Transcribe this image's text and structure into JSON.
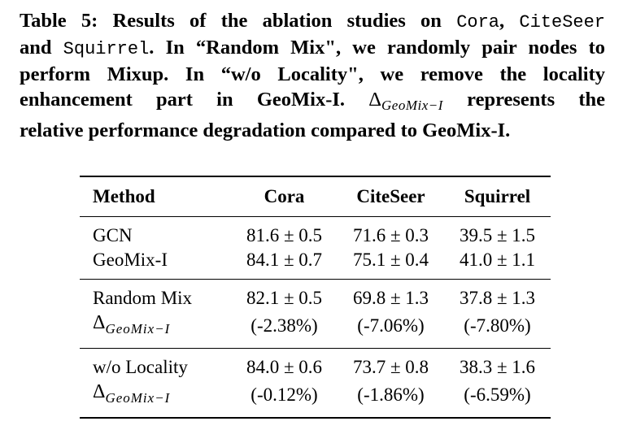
{
  "caption": {
    "line1_a": "Table 5: Results of the ablation studies on ",
    "line1_cora": "Cora",
    "line1_comma": ", ",
    "line1_citeseer": "CiteSeer",
    "line2_a": "and ",
    "line2_squirrel": "Squirrel",
    "line2_b": ". In “Random Mix\", we randomly pair nodes to",
    "line3": "perform Mixup. In “w/o Locality\", we remove the locality",
    "line4_a": "enhancement part in GeoMix-I. ",
    "line4_delta": "Δ",
    "line4_sub": "GeoMix−I",
    "line4_b": " represents the",
    "line5": "relative performance degradation compared to GeoMix-I."
  },
  "table": {
    "headers": [
      "Method",
      "Cora",
      "CiteSeer",
      "Squirrel"
    ],
    "groups": [
      {
        "rows": [
          {
            "method": "GCN",
            "values": [
              "81.6 ± 0.5",
              "71.6 ± 0.3",
              "39.5 ± 1.5"
            ]
          },
          {
            "method": "GeoMix-I",
            "values": [
              "84.1 ± 0.7",
              "75.1 ± 0.4",
              "41.0 ± 1.1"
            ]
          }
        ]
      },
      {
        "rows": [
          {
            "method": "Random Mix",
            "values": [
              "82.1 ± 0.5",
              "69.8 ± 1.3",
              "37.8 ± 1.3"
            ]
          },
          {
            "method_delta": "Δ",
            "method_sub": "GeoMix−I",
            "values": [
              "(-2.38%)",
              "(-7.06%)",
              "(-7.80%)"
            ]
          }
        ]
      },
      {
        "rows": [
          {
            "method": "w/o Locality",
            "values": [
              "84.0 ± 0.6",
              "73.7 ± 0.8",
              "38.3 ± 1.6"
            ]
          },
          {
            "method_delta": "Δ",
            "method_sub": "GeoMix−I",
            "values": [
              "(-0.12%)",
              "(-1.86%)",
              "(-6.59%)"
            ]
          }
        ]
      }
    ]
  }
}
